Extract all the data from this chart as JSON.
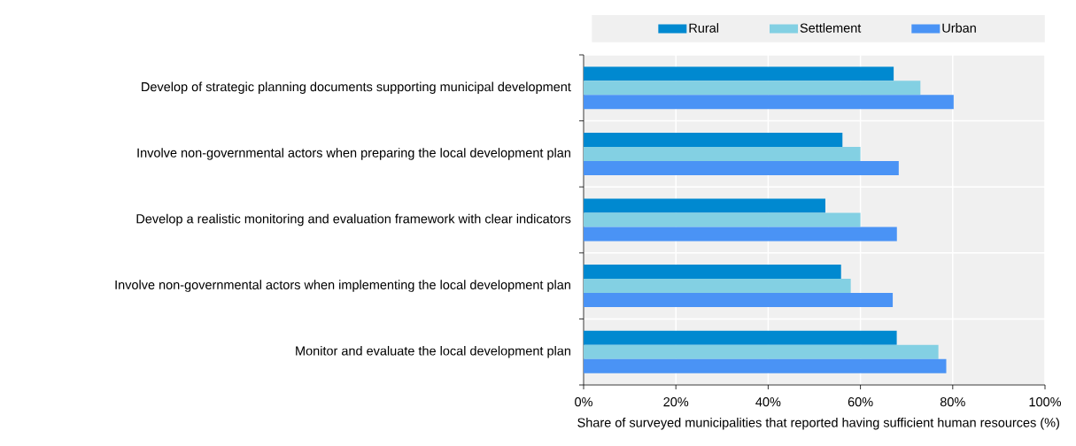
{
  "chart_data": {
    "type": "bar",
    "orientation": "horizontal",
    "xlabel": "Share of surveyed municipalities that reported having sufficient human resources (%)",
    "categories": [
      "Develop of strategic planning documents supporting municipal development",
      "Involve non-governmental actors when preparing the local development plan",
      "Develop a realistic monitoring and evaluation framework with clear indicators",
      "Involve non-governmental actors when implementing the local development plan",
      "Monitor and evaluate the local development plan"
    ],
    "series": [
      {
        "name": "Rural",
        "color": "#0089d0",
        "values": [
          67.2,
          56.1,
          52.4,
          55.8,
          67.9
        ]
      },
      {
        "name": "Settlement",
        "color": "#83d0e3",
        "values": [
          73.0,
          60.0,
          60.0,
          57.9,
          76.9
        ]
      },
      {
        "name": "Urban",
        "color": "#4a93f5",
        "values": [
          80.2,
          68.3,
          67.9,
          67.0,
          78.6
        ]
      }
    ],
    "xlim": [
      0,
      100
    ],
    "xticks": [
      {
        "value": 0,
        "label": "0%"
      },
      {
        "value": 20,
        "label": "20%"
      },
      {
        "value": 40,
        "label": "40%"
      },
      {
        "value": 60,
        "label": "60%"
      },
      {
        "value": 80,
        "label": "80%"
      },
      {
        "value": 100,
        "label": "100%"
      }
    ],
    "grid": "x",
    "legend": "top"
  }
}
